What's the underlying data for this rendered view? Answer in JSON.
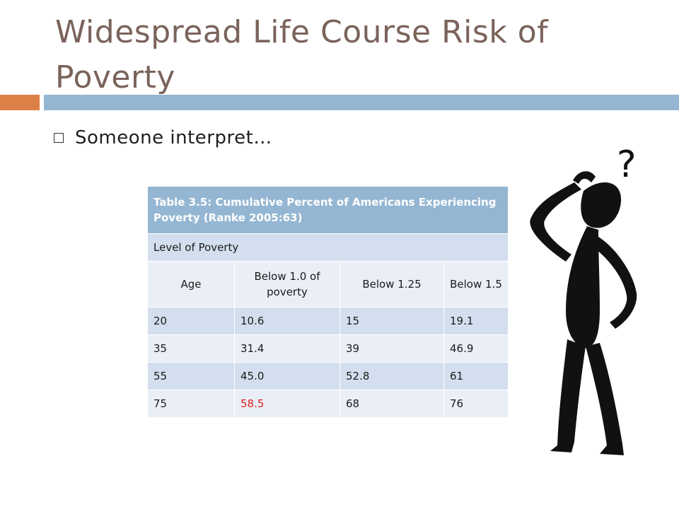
{
  "slide": {
    "title": "Widespread Life Course Risk of Poverty",
    "bullet": "Someone interpret…"
  },
  "table": {
    "caption": "Table 3.5: Cumulative Percent of  Americans Experiencing Poverty (Ranke 2005:63)",
    "level_label": "Level of Poverty",
    "headers": [
      "Age",
      "Below 1.0 of poverty",
      "Below 1.25",
      "Below 1.5"
    ],
    "rows": [
      [
        "20",
        "10.6",
        "15",
        "19.1"
      ],
      [
        "35",
        "31.4",
        "39",
        "46.9"
      ],
      [
        "55",
        "45.0",
        "52.8",
        "61"
      ],
      [
        "75",
        "58.5",
        "68",
        "76"
      ]
    ],
    "highlight_color": "#e02020"
  },
  "figure": {
    "question_mark": "?",
    "icon": "confused-person-icon"
  },
  "colors": {
    "title": "#7a635a",
    "accent_orange": "#dd8047",
    "accent_blue": "#94b6d2",
    "row_dark": "#d3dfee",
    "row_light": "#eaeff7"
  }
}
